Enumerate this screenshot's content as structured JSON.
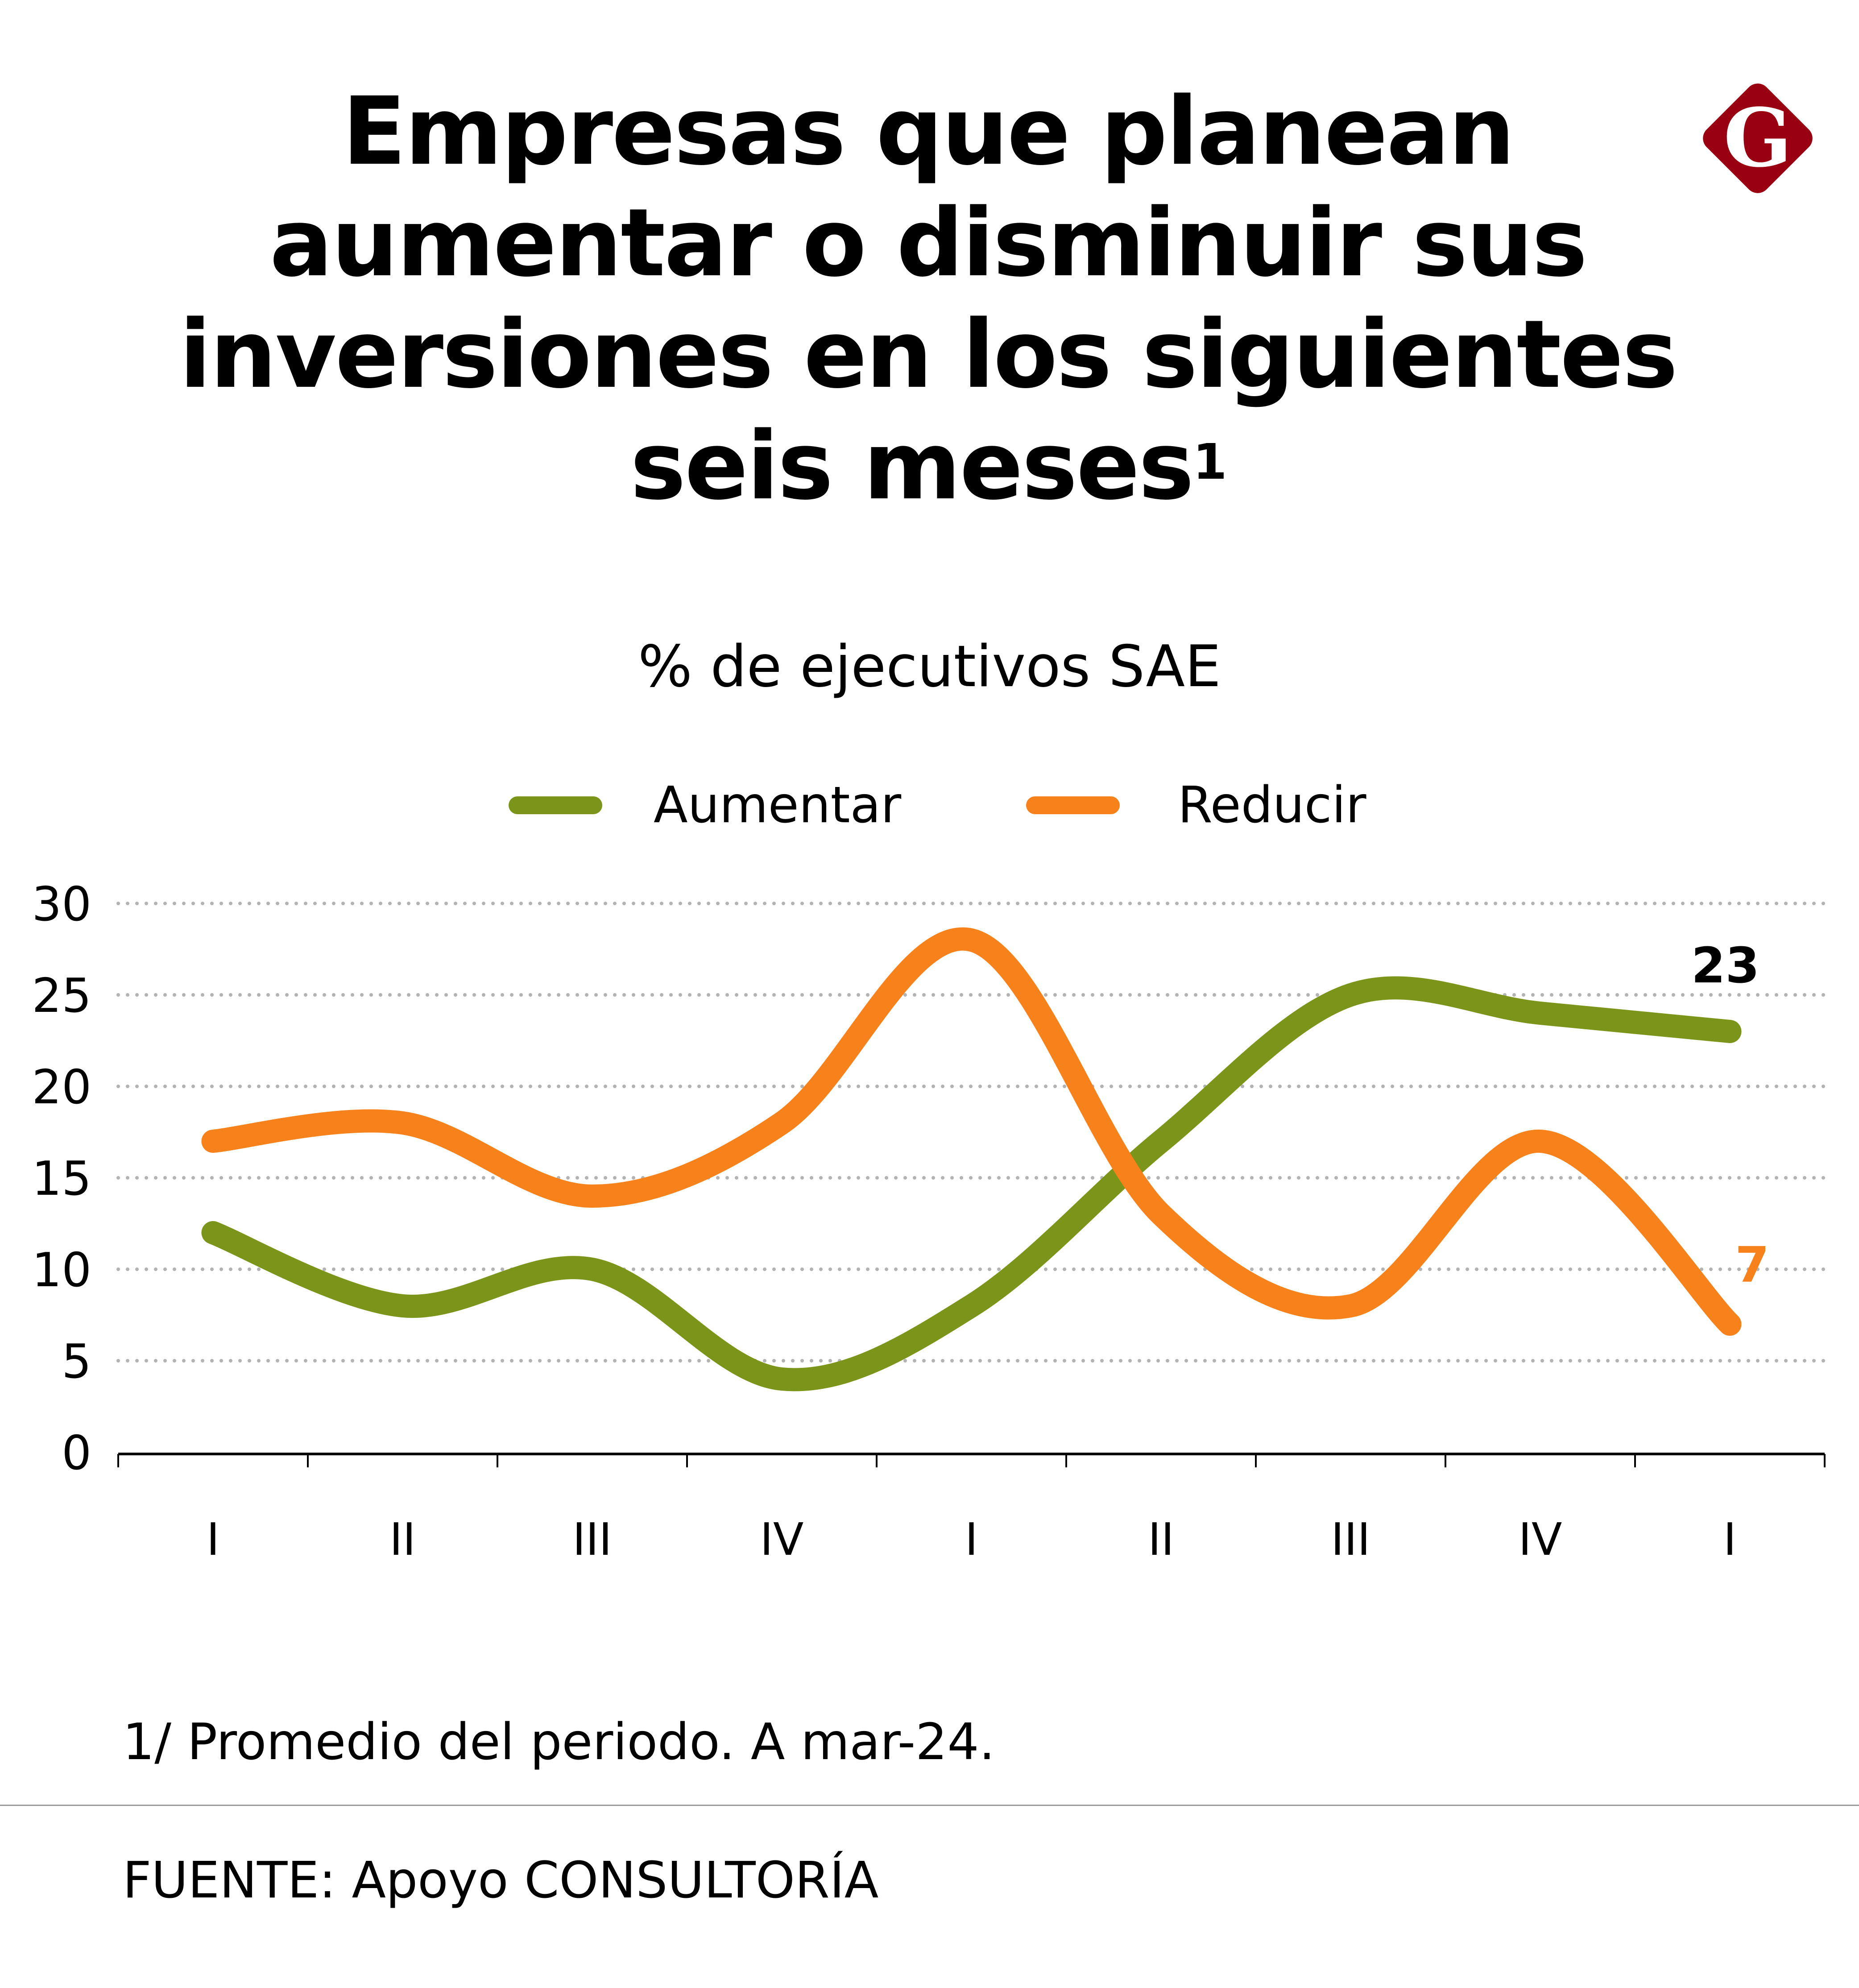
{
  "title": {
    "lines": [
      "Empresas que planean",
      "aumentar o disminuir sus",
      "inversiones en los siguientes",
      "seis meses"
    ],
    "superscript": "1"
  },
  "logo": {
    "icon": "g-diamond-logo-icon",
    "letter": "G",
    "color": "#990011"
  },
  "subtitle": "% de ejecutivos SAE",
  "footnote": "1/ Promedio del periodo. A mar-24.",
  "source": "FUENTE: Apoyo CONSULTORÍA",
  "chart_data": {
    "type": "line",
    "title": "Empresas que planean aumentar o disminuir sus inversiones en los siguientes seis meses",
    "subtitle": "% de ejecutivos SAE",
    "xlabel": "",
    "ylabel": "",
    "categories": [
      "I",
      "II",
      "III",
      "IV",
      "I",
      "II",
      "III",
      "IV",
      "I"
    ],
    "ylim": [
      0,
      30
    ],
    "yticks": [
      "0",
      "5",
      "10",
      "15",
      "20",
      "25",
      "30"
    ],
    "yticks_values": [
      0,
      5,
      10,
      15,
      20,
      25,
      30
    ],
    "grid": true,
    "legend_position": "top-center",
    "smooth": true,
    "series": [
      {
        "name": "Aumentar",
        "color": "#7a9519",
        "values": [
          12,
          8,
          10,
          4,
          8,
          17,
          25,
          24,
          23
        ],
        "end_label": "23",
        "end_label_color": "#000000"
      },
      {
        "name": "Reducir",
        "color": "#f7821b",
        "values": [
          17,
          18,
          14,
          18,
          28,
          13,
          8,
          17,
          7
        ],
        "end_label": "7",
        "end_label_color": "#f7821b"
      }
    ]
  }
}
